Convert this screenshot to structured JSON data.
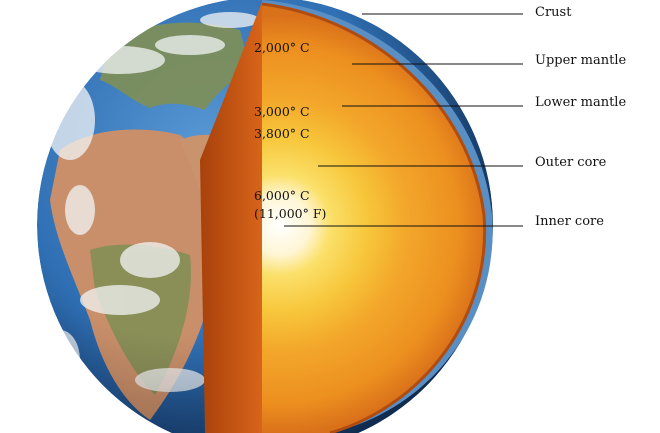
{
  "diagram": {
    "layers": {
      "crust": "Crust",
      "upper_mantle": "Upper mantle",
      "lower_mantle": "Lower mantle",
      "outer_core": "Outer core",
      "inner_core": "Inner core"
    },
    "temperatures": {
      "upper_mantle": "2,000° C",
      "lower_mantle": "3,000° C",
      "outer_core": "3,800° C",
      "inner_core_c": "6,000° C",
      "inner_core_f": "(11,000° F)"
    },
    "colors": {
      "ocean": "#2f6fb3",
      "land_desert": "#c98f6a",
      "land_green": "#7f8f55",
      "cloud": "#f2f4f6",
      "crust_cut": "#c24f12",
      "mantle_outer": "#e8891c",
      "mantle_inner": "#f3a72b",
      "outer_core": "#f7cf3c",
      "inner_core": "#ffffff",
      "leader_line": "#111111"
    }
  }
}
